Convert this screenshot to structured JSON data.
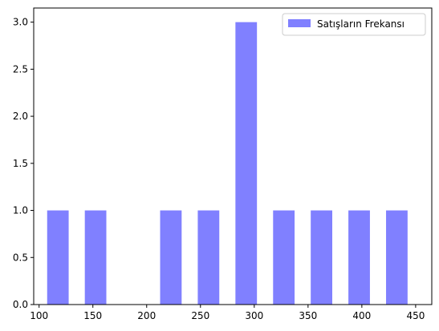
{
  "chart_data": {
    "type": "bar",
    "bar_color": "#8080ff",
    "bar_width": 20,
    "bars": [
      {
        "x": 117.5,
        "value": 1
      },
      {
        "x": 152.5,
        "value": 1
      },
      {
        "x": 222.5,
        "value": 1
      },
      {
        "x": 257.5,
        "value": 1
      },
      {
        "x": 292.5,
        "value": 3
      },
      {
        "x": 327.5,
        "value": 1
      },
      {
        "x": 362.5,
        "value": 1
      },
      {
        "x": 397.5,
        "value": 1
      },
      {
        "x": 432.5,
        "value": 1
      }
    ],
    "xlim": [
      95,
      465
    ],
    "ylim": [
      0,
      3.15
    ],
    "x_ticks": [
      100,
      150,
      200,
      250,
      300,
      350,
      400,
      450
    ],
    "x_tick_labels": [
      "100",
      "150",
      "200",
      "250",
      "300",
      "350",
      "400",
      "450"
    ],
    "y_ticks": [
      0,
      0.5,
      1.0,
      1.5,
      2.0,
      2.5,
      3.0
    ],
    "y_tick_labels": [
      "0.0",
      "0.5",
      "1.0",
      "1.5",
      "2.0",
      "2.5",
      "3.0"
    ],
    "legend": {
      "position": "upper-right",
      "entries": [
        {
          "label": "Satışların Frekansı",
          "color": "#8080ff"
        }
      ]
    },
    "grid": false,
    "title": "",
    "xlabel": "",
    "ylabel": ""
  }
}
